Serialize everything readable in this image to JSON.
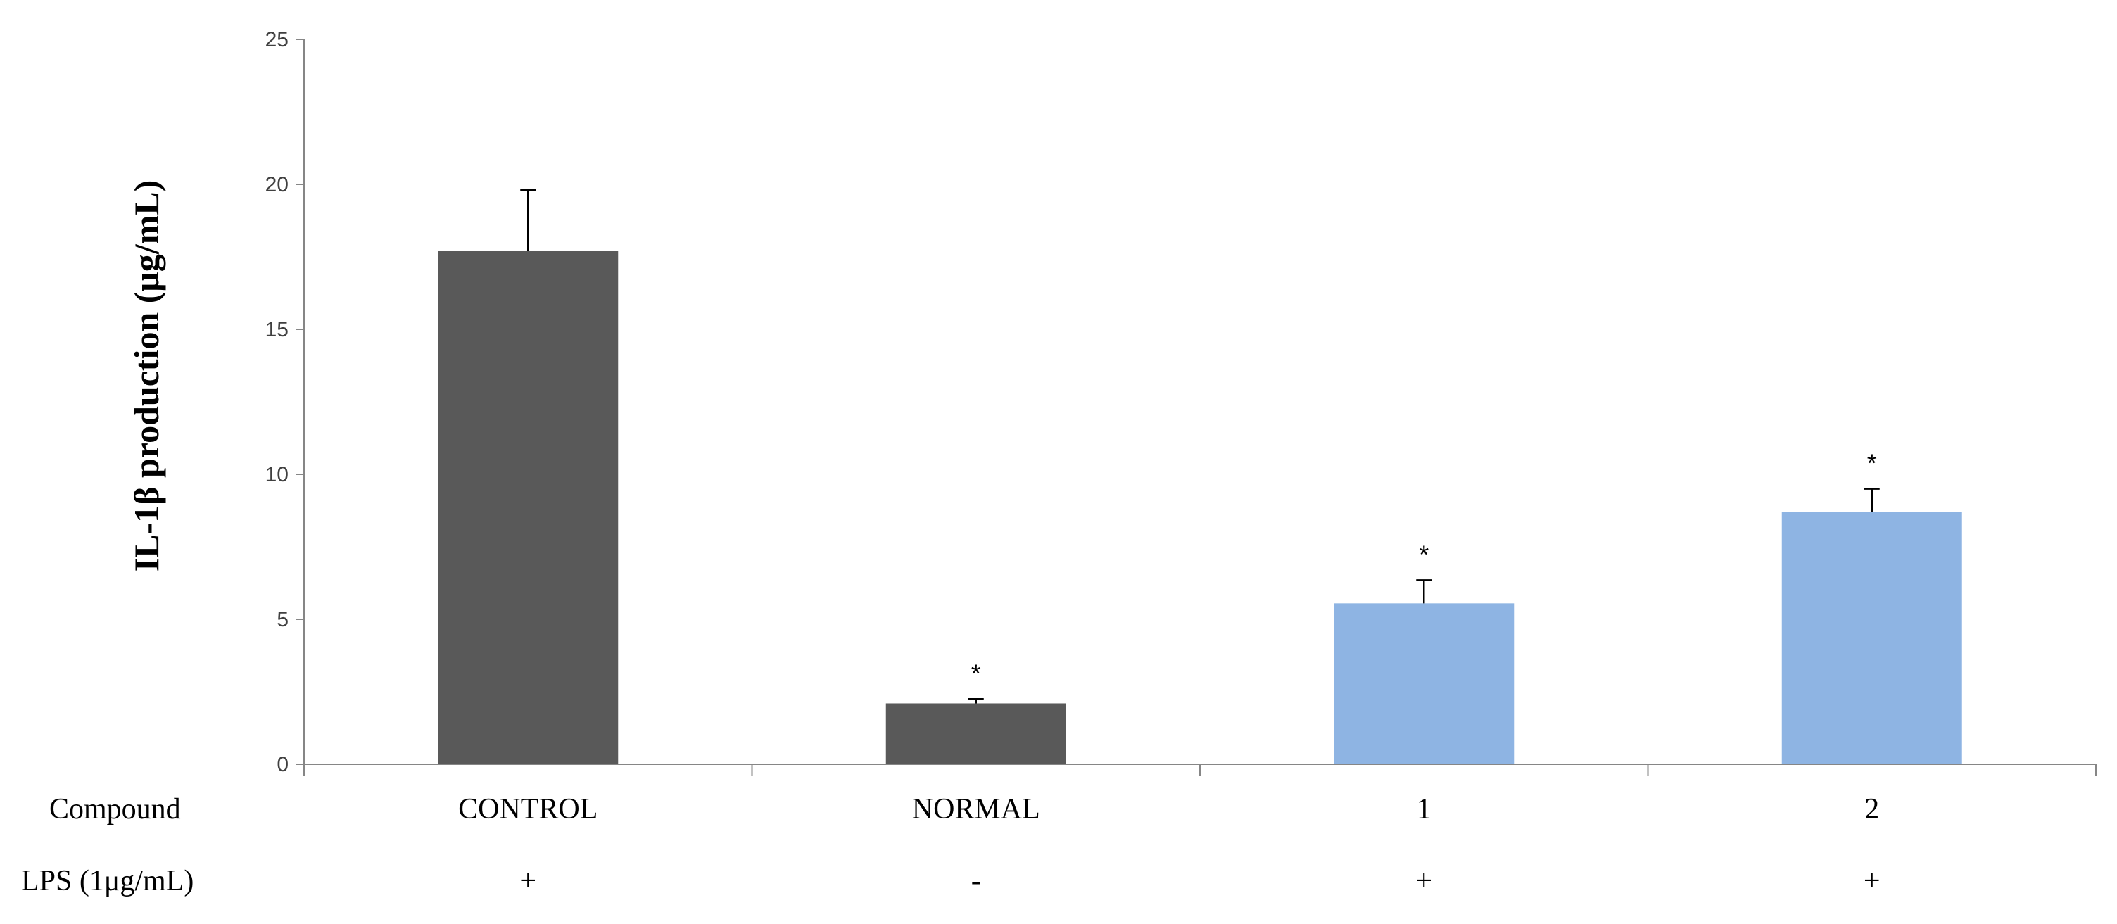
{
  "chart_data": {
    "type": "bar",
    "title": "",
    "xlabel": "",
    "ylabel": "IL-1β production (μg/mL)",
    "ylim": [
      0,
      25
    ],
    "yticks": [
      0,
      5,
      10,
      15,
      20,
      25
    ],
    "categories": [
      "CONTROL",
      "NORMAL",
      "1",
      "2"
    ],
    "values": [
      17.7,
      2.1,
      5.55,
      8.7
    ],
    "errors": [
      2.1,
      0.15,
      0.8,
      0.8
    ],
    "significance": [
      "",
      "*",
      "*",
      "*"
    ],
    "colors": [
      "#595959",
      "#595959",
      "#8eb4e3",
      "#8eb4e3"
    ],
    "rows": [
      {
        "label": "Compound",
        "values": [
          "CONTROL",
          "NORMAL",
          "1",
          "2"
        ]
      },
      {
        "label": "LPS (1μg/mL)",
        "values": [
          "+",
          "-",
          "+",
          "+"
        ]
      }
    ],
    "grid": false,
    "legend": "none"
  }
}
